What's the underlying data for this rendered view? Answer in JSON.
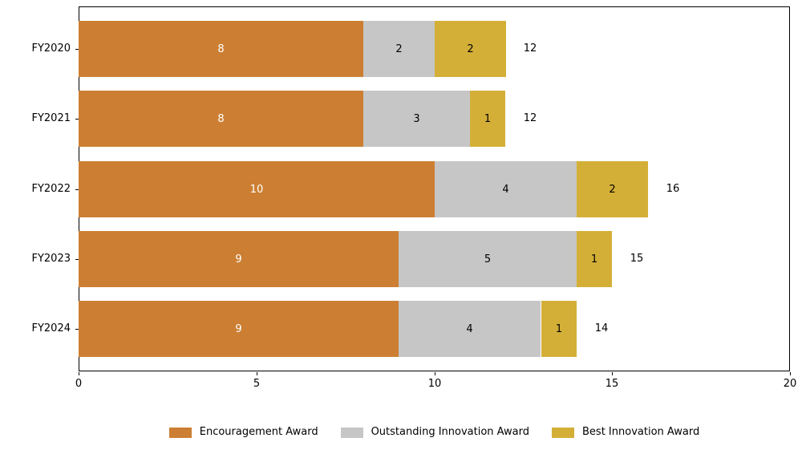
{
  "chart_data": {
    "type": "bar",
    "orientation": "horizontal",
    "stacked": true,
    "title": "",
    "xlabel": "",
    "ylabel": "",
    "categories": [
      "FY2020",
      "FY2021",
      "FY2022",
      "FY2023",
      "FY2024"
    ],
    "series": [
      {
        "name": "Encouragement Award",
        "color": "#CC7F33",
        "value_label_color": "#ffffff",
        "values": [
          8,
          8,
          10,
          9,
          9
        ]
      },
      {
        "name": "Outstanding Innovation Award",
        "color": "#C6C6C6",
        "value_label_color": "#000000",
        "values": [
          2,
          3,
          4,
          5,
          4
        ]
      },
      {
        "name": "Best Innovation Award",
        "color": "#D4AF37",
        "value_label_color": "#000000",
        "values": [
          2,
          1,
          2,
          1,
          1
        ]
      }
    ],
    "totals": [
      12,
      12,
      16,
      15,
      14
    ],
    "x_ticks": [
      "0",
      "5",
      "10",
      "15",
      "20"
    ],
    "x_tick_values": [
      0,
      5,
      10,
      15,
      20
    ],
    "xlim": [
      0,
      20
    ],
    "grid": false,
    "legend_position": "bottom",
    "frame_color": "#000000",
    "text_color": "#000000",
    "background_color": "#ffffff"
  }
}
